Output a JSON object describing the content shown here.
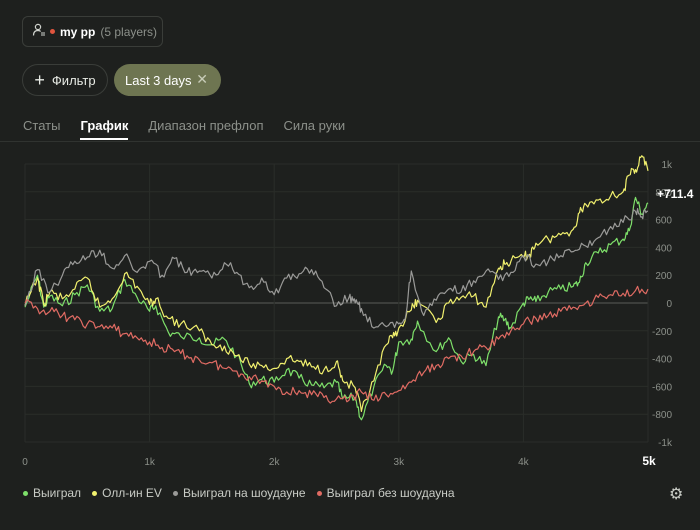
{
  "header": {
    "player_name": "my pp",
    "player_count": "(5 players)",
    "icon": "user-settings-icon",
    "status_color": "#e0553e"
  },
  "filters": {
    "add_filter_label": "Фильтр",
    "date_chip_label": "Last 3 days",
    "date_chip_color": "#6e7551"
  },
  "tabs": [
    {
      "label": "Статы",
      "active": false
    },
    {
      "label": "График",
      "active": true
    },
    {
      "label": "Диапазон префлоп",
      "active": false
    },
    {
      "label": "Сила руки",
      "active": false
    }
  ],
  "chart_data": {
    "type": "line",
    "xlim": [
      0,
      5000
    ],
    "ylim": [
      -1000,
      1000
    ],
    "x_ticks": [
      "0",
      "1k",
      "2k",
      "3k",
      "4k",
      "5k"
    ],
    "y_ticks": [
      "1k",
      "800",
      "600",
      "400",
      "200",
      "0",
      "-200",
      "-400",
      "-600",
      "-800",
      "-1k"
    ],
    "grid": true,
    "legend_position": "bottom-left",
    "end_label": "+711.4",
    "series": [
      {
        "name": "Выиграл",
        "color": "#7ee06a",
        "x": [
          0,
          100,
          150,
          200,
          300,
          400,
          500,
          600,
          700,
          800,
          900,
          1000,
          1050,
          1150,
          1250,
          1400,
          1500,
          1600,
          1700,
          1800,
          1900,
          2000,
          2100,
          2200,
          2300,
          2400,
          2500,
          2550,
          2650,
          2700,
          2800,
          2900,
          2950,
          3000,
          3100,
          3150,
          3300,
          3400,
          3500,
          3600,
          3700,
          3800,
          3850,
          3900,
          4000,
          4050,
          4100,
          4200,
          4300,
          4400,
          4450,
          4500,
          4600,
          4700,
          4800,
          4850,
          4900,
          4950,
          5000
        ],
        "values": [
          -30,
          200,
          -30,
          50,
          -20,
          60,
          130,
          -60,
          -40,
          170,
          40,
          -60,
          -20,
          -210,
          -240,
          -250,
          -300,
          -260,
          -380,
          -580,
          -550,
          -570,
          -480,
          -540,
          -590,
          -610,
          -570,
          -690,
          -680,
          -840,
          -600,
          -450,
          -490,
          -280,
          -260,
          -130,
          -350,
          -250,
          -420,
          -370,
          -450,
          -100,
          -120,
          -180,
          0,
          30,
          10,
          80,
          100,
          120,
          150,
          290,
          360,
          420,
          460,
          520,
          760,
          640,
          720
        ]
      },
      {
        "name": "Олл-ин EV",
        "color": "#f1f06e",
        "x": [
          0,
          100,
          150,
          200,
          300,
          400,
          500,
          600,
          700,
          800,
          900,
          1000,
          1050,
          1150,
          1250,
          1400,
          1500,
          1600,
          1700,
          1800,
          1900,
          2000,
          2100,
          2200,
          2300,
          2400,
          2500,
          2550,
          2650,
          2700,
          2800,
          2900,
          2950,
          3000,
          3100,
          3150,
          3300,
          3400,
          3500,
          3600,
          3700,
          3800,
          3850,
          3900,
          4000,
          4050,
          4100,
          4200,
          4300,
          4400,
          4450,
          4500,
          4600,
          4700,
          4800,
          4850,
          4900,
          4950,
          5000
        ],
        "values": [
          -20,
          180,
          -10,
          80,
          30,
          100,
          180,
          -30,
          30,
          210,
          120,
          -10,
          30,
          -110,
          -150,
          -200,
          -300,
          -310,
          -380,
          -440,
          -450,
          -470,
          -400,
          -420,
          -460,
          -480,
          -420,
          -560,
          -610,
          -780,
          -560,
          -300,
          -250,
          -180,
          -50,
          20,
          -140,
          0,
          40,
          50,
          -30,
          250,
          280,
          300,
          330,
          350,
          430,
          460,
          490,
          530,
          650,
          710,
          740,
          770,
          800,
          920,
          960,
          1060,
          950
        ]
      },
      {
        "name": "Выиграл на шоудауне",
        "color": "#9a9a98",
        "x": [
          0,
          100,
          200,
          300,
          400,
          500,
          600,
          700,
          800,
          900,
          1000,
          1100,
          1200,
          1300,
          1400,
          1500,
          1600,
          1700,
          1800,
          1900,
          2000,
          2100,
          2200,
          2300,
          2400,
          2500,
          2600,
          2650,
          2700,
          2800,
          2900,
          3000,
          3050,
          3100,
          3200,
          3300,
          3400,
          3500,
          3600,
          3700,
          3800,
          3900,
          4000,
          4100,
          4200,
          4300,
          4400,
          4500,
          4600,
          4700,
          4800,
          4900,
          4950,
          5000
        ],
        "values": [
          -20,
          240,
          80,
          200,
          300,
          330,
          380,
          250,
          340,
          220,
          300,
          200,
          320,
          220,
          230,
          180,
          290,
          220,
          110,
          180,
          60,
          180,
          210,
          240,
          110,
          -20,
          40,
          0,
          -40,
          -180,
          -170,
          -150,
          -120,
          230,
          -90,
          20,
          100,
          80,
          160,
          230,
          170,
          220,
          340,
          280,
          300,
          340,
          370,
          410,
          470,
          550,
          580,
          660,
          620,
          660
        ]
      },
      {
        "name": "Выиграл без шоудауна",
        "color": "#e06b63",
        "x": [
          0,
          100,
          200,
          300,
          400,
          500,
          600,
          700,
          800,
          900,
          1000,
          1100,
          1200,
          1300,
          1400,
          1500,
          1600,
          1700,
          1800,
          1900,
          2000,
          2100,
          2200,
          2300,
          2400,
          2500,
          2600,
          2700,
          2800,
          2900,
          3000,
          3100,
          3200,
          3300,
          3400,
          3500,
          3600,
          3700,
          3800,
          3900,
          4000,
          4100,
          4200,
          4300,
          4400,
          4500,
          4600,
          4700,
          4800,
          4900,
          5000
        ],
        "values": [
          0,
          -40,
          -60,
          -90,
          -120,
          -150,
          -170,
          -180,
          -220,
          -250,
          -280,
          -320,
          -350,
          -380,
          -410,
          -430,
          -470,
          -490,
          -530,
          -560,
          -600,
          -640,
          -630,
          -660,
          -680,
          -690,
          -700,
          -640,
          -700,
          -660,
          -630,
          -570,
          -500,
          -450,
          -400,
          -380,
          -350,
          -320,
          -260,
          -200,
          -150,
          -110,
          -90,
          -60,
          -30,
          0,
          40,
          60,
          70,
          90,
          100
        ]
      }
    ]
  },
  "legend": [
    {
      "label": "Выиграл",
      "color": "#7ee06a"
    },
    {
      "label": "Олл-ин EV",
      "color": "#f1f06e"
    },
    {
      "label": "Выиграл на шоудауне",
      "color": "#9a9a98"
    },
    {
      "label": "Выиграл без шоудауна",
      "color": "#e06b63"
    }
  ],
  "footer": {
    "settings_icon": "gear-icon"
  }
}
